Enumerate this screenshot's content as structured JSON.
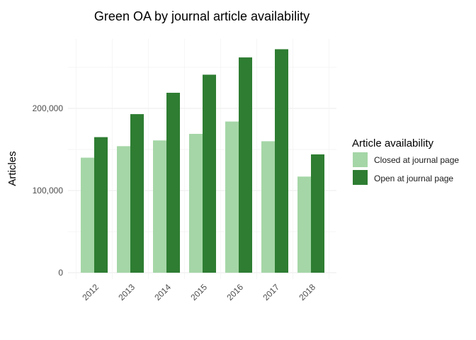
{
  "colors": {
    "closed": "#a5d6a7",
    "open": "#2e7d32"
  },
  "chart_data": {
    "type": "bar",
    "title": "Green OA by journal article availability",
    "xlabel": "",
    "ylabel": "Articles",
    "categories": [
      "2012",
      "2013",
      "2014",
      "2015",
      "2016",
      "2017",
      "2018"
    ],
    "series": [
      {
        "name": "Closed at journal page",
        "values": [
          140000,
          154000,
          161000,
          169000,
          184000,
          160000,
          117000
        ]
      },
      {
        "name": "Open at journal page",
        "values": [
          165000,
          193000,
          219000,
          241000,
          262000,
          272000,
          144000
        ]
      }
    ],
    "ylim": [
      0,
      290000
    ],
    "yticks": [
      0,
      100000,
      200000
    ],
    "ytick_labels": [
      "0",
      "100,000",
      "200,000"
    ],
    "legend": {
      "title": "Article availability",
      "position": "right"
    },
    "grid": true
  }
}
